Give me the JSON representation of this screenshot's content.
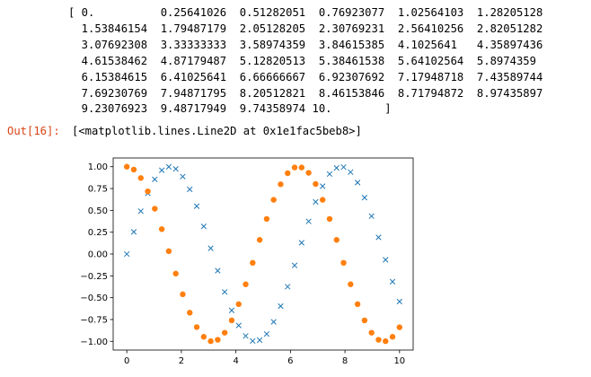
{
  "array_output": {
    "lines": [
      "[ 0.          0.25641026  0.51282051  0.76923077  1.02564103  1.28205128",
      "  1.53846154  1.79487179  2.05128205  2.30769231  2.56410256  2.82051282",
      "  3.07692308  3.33333333  3.58974359  3.84615385  4.1025641   4.35897436",
      "  4.61538462  4.87179487  5.12820513  5.38461538  5.64102564  5.8974359",
      "  6.15384615  6.41025641  6.66666667  6.92307692  7.17948718  7.43589744",
      "  7.69230769  7.94871795  8.20512821  8.46153846  8.71794872  8.97435897",
      "  9.23076923  9.48717949  9.74358974 10.        ]"
    ]
  },
  "output_cell": {
    "prompt": "Out[16]:",
    "text": "[<matplotlib.lines.Line2D at 0x1e1fac5beb8>]"
  },
  "chart_data": {
    "type": "scatter",
    "x": [
      0,
      0.25641026,
      0.51282051,
      0.76923077,
      1.02564103,
      1.28205128,
      1.53846154,
      1.79487179,
      2.05128205,
      2.30769231,
      2.56410256,
      2.82051282,
      3.07692308,
      3.33333333,
      3.58974359,
      3.84615385,
      4.1025641,
      4.35897436,
      4.61538462,
      4.87179487,
      5.12820513,
      5.38461538,
      5.64102564,
      5.8974359,
      6.15384615,
      6.41025641,
      6.66666667,
      6.92307692,
      7.17948718,
      7.43589744,
      7.69230769,
      7.94871795,
      8.20512821,
      8.46153846,
      8.71794872,
      8.97435897,
      9.23076923,
      9.48717949,
      9.74358974,
      10
    ],
    "series": [
      {
        "marker": "x",
        "color": "#1f77b4",
        "values": [
          0,
          0.254,
          0.491,
          0.696,
          0.855,
          0.959,
          0.999,
          0.975,
          0.887,
          0.741,
          0.548,
          0.317,
          0.066,
          -0.191,
          -0.434,
          -0.646,
          -0.818,
          -0.938,
          -0.996,
          -0.986,
          -0.916,
          -0.777,
          -0.597,
          -0.374,
          -0.13,
          0.129,
          0.374,
          0.597,
          0.777,
          0.916,
          0.986,
          0.996,
          0.938,
          0.818,
          0.646,
          0.434,
          0.191,
          -0.066,
          -0.317,
          -0.544
        ]
      },
      {
        "marker": "o",
        "color": "#ff7f0e",
        "values": [
          1,
          0.967,
          0.871,
          0.718,
          0.519,
          0.285,
          0.032,
          -0.224,
          -0.461,
          -0.672,
          -0.837,
          -0.948,
          -0.998,
          -0.982,
          -0.901,
          -0.76,
          -0.574,
          -0.347,
          -0.101,
          0.162,
          0.402,
          0.621,
          0.799,
          0.926,
          0.991,
          0.991,
          0.93,
          0.802,
          0.621,
          0.402,
          0.162,
          -0.101,
          -0.347,
          -0.574,
          -0.76,
          -0.901,
          -0.982,
          -0.998,
          -0.948,
          -0.839
        ]
      }
    ],
    "xticks": [
      "0",
      "2",
      "4",
      "6",
      "8",
      "10"
    ],
    "yticks": [
      "1.00",
      "0.75",
      "0.50",
      "0.25",
      "0.00",
      "−0.25",
      "−0.50",
      "−0.75",
      "−1.00"
    ],
    "xlim": [
      -0.5,
      10.5
    ],
    "ylim": [
      -1.1,
      1.1
    ],
    "grid": false
  }
}
